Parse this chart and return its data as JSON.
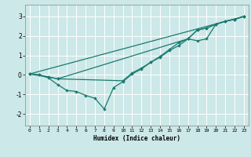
{
  "xlabel": "Humidex (Indice chaleur)",
  "background_color": "#cce8e8",
  "grid_color": "#ffffff",
  "line_color": "#1a7a6e",
  "xlim": [
    -0.5,
    23.5
  ],
  "ylim": [
    -2.6,
    3.6
  ],
  "yticks": [
    -2,
    -1,
    0,
    1,
    2,
    3
  ],
  "xticks": [
    0,
    1,
    2,
    3,
    4,
    5,
    6,
    7,
    8,
    9,
    10,
    11,
    12,
    13,
    14,
    15,
    16,
    17,
    18,
    19,
    20,
    21,
    22,
    23
  ],
  "line1_x": [
    0,
    1,
    2,
    3,
    4,
    5,
    6,
    7,
    8,
    9,
    10,
    11,
    12,
    13,
    14,
    15,
    16,
    17,
    18,
    19,
    20,
    21,
    22,
    23
  ],
  "line1_y": [
    0.05,
    0.0,
    -0.15,
    -0.5,
    -0.8,
    -0.85,
    -1.05,
    -1.2,
    -1.75,
    -0.65,
    -0.35,
    0.05,
    0.3,
    0.65,
    0.95,
    1.3,
    1.65,
    1.85,
    2.3,
    2.4,
    2.6,
    2.75,
    2.85,
    3.0
  ],
  "line2_x": [
    0,
    1,
    2,
    3,
    10,
    11,
    12,
    13,
    14,
    15,
    16,
    17,
    18,
    19,
    20,
    21,
    22,
    23
  ],
  "line2_y": [
    0.05,
    0.0,
    -0.1,
    -0.2,
    -0.3,
    0.1,
    0.35,
    0.65,
    0.9,
    1.25,
    1.5,
    1.85,
    2.3,
    2.4,
    2.6,
    2.75,
    2.85,
    3.0
  ],
  "line3_x": [
    0,
    3,
    17,
    18,
    19,
    20,
    21,
    22,
    23
  ],
  "line3_y": [
    0.05,
    -0.2,
    1.85,
    1.75,
    1.85,
    2.6,
    2.75,
    2.85,
    3.0
  ],
  "line4_x": [
    0,
    23
  ],
  "line4_y": [
    0.05,
    3.0
  ]
}
